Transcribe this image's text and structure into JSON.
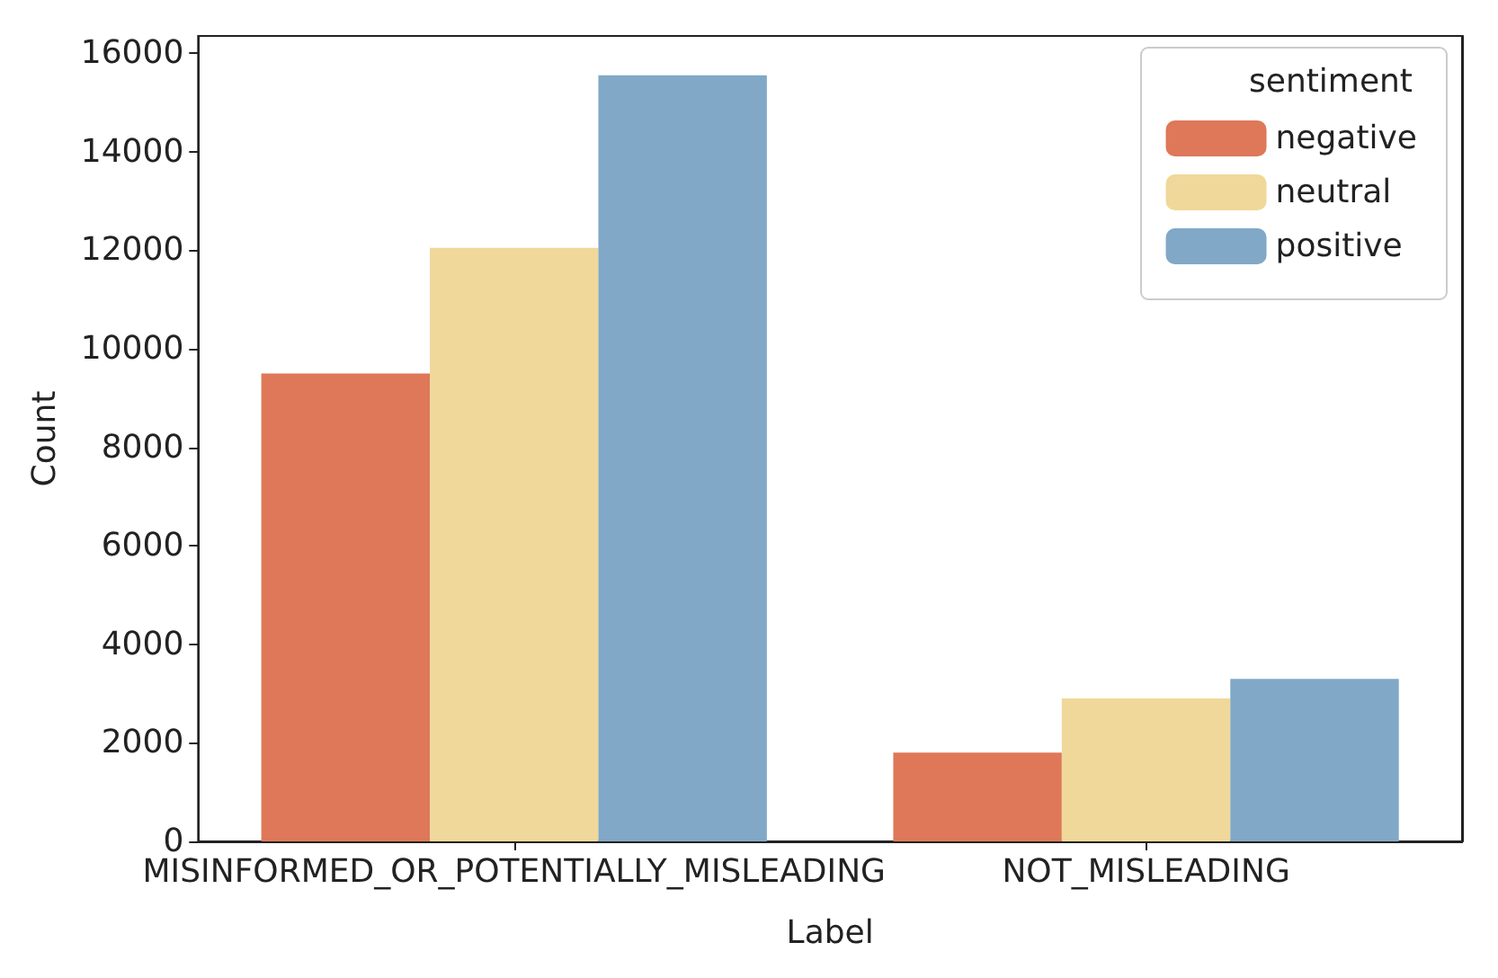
{
  "chart_data": {
    "type": "bar",
    "xlabel": "Label",
    "ylabel": "Count",
    "legend_title": "sentiment",
    "categories": [
      "MISINFORMED_OR_POTENTIALLY_MISLEADING",
      "NOT_MISLEADING"
    ],
    "series": [
      {
        "name": "negative",
        "color": "#de7858",
        "values": [
          9500,
          1800
        ]
      },
      {
        "name": "neutral",
        "color": "#f0d89a",
        "values": [
          12050,
          2900
        ]
      },
      {
        "name": "positive",
        "color": "#81a8c7",
        "values": [
          15550,
          3300
        ]
      }
    ],
    "ylim": [
      0,
      16350
    ],
    "yticks": [
      0,
      2000,
      4000,
      6000,
      8000,
      10000,
      12000,
      14000,
      16000
    ],
    "legend": "top right",
    "grid": false
  }
}
